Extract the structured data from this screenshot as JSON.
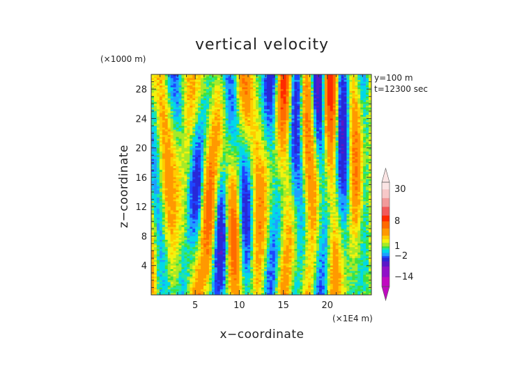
{
  "chart_data": {
    "type": "heatmap",
    "title": "vertical velocity",
    "xlabel": "x−coordinate",
    "ylabel": "z−coordinate",
    "x_unit": "(×1E4 m)",
    "y_unit": "(×1000 m)",
    "xlim": [
      0,
      25
    ],
    "ylim": [
      0,
      30
    ],
    "x_ticks": [
      5,
      10,
      15,
      20
    ],
    "y_ticks": [
      4,
      8,
      12,
      16,
      20,
      24,
      28
    ],
    "annotations": [
      "y=100 m",
      "t=12300 sec"
    ],
    "colorbar": {
      "labels": [
        "30",
        "8",
        "1",
        "−2",
        "−14"
      ],
      "label_values": [
        30,
        8,
        1,
        -2,
        -14
      ],
      "segments": [
        {
          "lo": -20,
          "hi": -14,
          "color": "#c00ac0"
        },
        {
          "lo": -14,
          "hi": -8,
          "color": "#9010c8"
        },
        {
          "lo": -8,
          "hi": -5,
          "color": "#5a18c8"
        },
        {
          "lo": -5,
          "hi": -3,
          "color": "#2828d8"
        },
        {
          "lo": -3,
          "hi": -2,
          "color": "#1e46ff"
        },
        {
          "lo": -2,
          "hi": -1,
          "color": "#1ea0ff"
        },
        {
          "lo": -1,
          "hi": 0,
          "color": "#00d8e8"
        },
        {
          "lo": 0,
          "hi": 0.5,
          "color": "#22e6a0"
        },
        {
          "lo": 0.5,
          "hi": 1,
          "color": "#3ee23e"
        },
        {
          "lo": 1,
          "hi": 2,
          "color": "#a6ea28"
        },
        {
          "lo": 2,
          "hi": 3,
          "color": "#f2f20e"
        },
        {
          "lo": 3,
          "hi": 4,
          "color": "#ffcc00"
        },
        {
          "lo": 4,
          "hi": 6,
          "color": "#ff9900"
        },
        {
          "lo": 6,
          "hi": 8,
          "color": "#ff6a00"
        },
        {
          "lo": 8,
          "hi": 12,
          "color": "#ff2a00"
        },
        {
          "lo": 12,
          "hi": 18,
          "color": "#f25a5a"
        },
        {
          "lo": 18,
          "hi": 24,
          "color": "#f29a9a"
        },
        {
          "lo": 24,
          "hi": 30,
          "color": "#f7c8c8"
        },
        {
          "lo": 30,
          "hi": 40,
          "color": "#fbe4e4"
        }
      ],
      "min_color": "#c00ac0",
      "max_color": "#fbe4e4"
    }
  }
}
